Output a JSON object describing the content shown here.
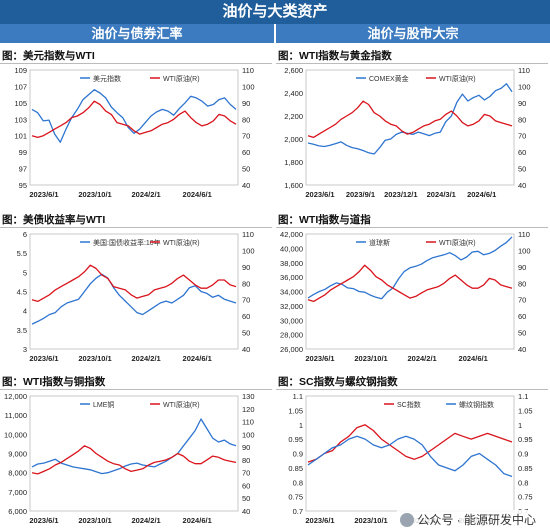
{
  "header": {
    "title": "油价与大类资产",
    "left_section": "油价与债券汇率",
    "right_section": "油价与股市大宗"
  },
  "watermark": "公众号 · 能源研发中心",
  "colors": {
    "header": "#1f5e9a",
    "subheader": "#3c7bc0",
    "blue": "#2e75d0",
    "red": "#d9141c"
  },
  "chart_data": [
    {
      "id": "usd-wti",
      "type": "line",
      "title": "图：美元指数与WTI",
      "x_ticks": [
        "2023/6/1",
        "2023/10/1",
        "2024/2/1",
        "2024/6/1"
      ],
      "y_left": {
        "min": 95,
        "max": 109,
        "step": 2,
        "ticks": [
          "109",
          "107",
          "105",
          "103",
          "101",
          "99",
          "97",
          "95"
        ]
      },
      "y_right": {
        "min": 40,
        "max": 110,
        "step": 10,
        "ticks": [
          "110",
          "100",
          "90",
          "80",
          "70",
          "60",
          "50",
          "40"
        ]
      },
      "legend_pos": "top-center",
      "series": [
        {
          "name": "美元指数",
          "axis": "left",
          "color": "blue",
          "values": [
            104.2,
            103.8,
            102.8,
            102.9,
            101.2,
            100.2,
            101.8,
            103.2,
            104.2,
            105.4,
            106.0,
            106.6,
            106.2,
            105.6,
            104.5,
            103.8,
            103.2,
            102.0,
            101.3,
            101.8,
            102.6,
            103.4,
            103.9,
            104.2,
            104.0,
            103.5,
            104.3,
            105.0,
            105.8,
            105.6,
            105.2,
            104.6,
            104.8,
            105.4,
            105.6,
            104.8,
            104.2
          ]
        },
        {
          "name": "WTI原油(R)",
          "axis": "right",
          "color": "red",
          "values": [
            70,
            69,
            70,
            72,
            74,
            76,
            78,
            81,
            82,
            84,
            87,
            91,
            89,
            85,
            83,
            78,
            77,
            76,
            73,
            71,
            72,
            73,
            75,
            77,
            78,
            80,
            83,
            85,
            81,
            78,
            76,
            77,
            79,
            83,
            82,
            79,
            77
          ]
        }
      ]
    },
    {
      "id": "wti-gold",
      "type": "line",
      "title": "图：WTI指数与黄金指数",
      "x_ticks": [
        "2023/6/1",
        "2023/9/1",
        "2023/12/1",
        "2024/3/1",
        "2024/6/1"
      ],
      "y_left": {
        "min": 1600,
        "max": 2600,
        "step": 200,
        "ticks": [
          "2,600",
          "2,400",
          "2,200",
          "2,000",
          "1,800",
          "1,600"
        ]
      },
      "y_right": {
        "min": 40,
        "max": 110,
        "step": 10,
        "ticks": [
          "110",
          "100",
          "90",
          "80",
          "70",
          "60",
          "50",
          "40"
        ]
      },
      "legend_pos": "top-center",
      "series": [
        {
          "name": "COMEX黄金",
          "axis": "left",
          "color": "blue",
          "values": [
            1965,
            1955,
            1940,
            1935,
            1945,
            1960,
            1975,
            1945,
            1925,
            1915,
            1900,
            1880,
            1870,
            1925,
            1990,
            2000,
            2040,
            2060,
            2050,
            2040,
            2060,
            2045,
            2030,
            2050,
            2060,
            2150,
            2200,
            2320,
            2390,
            2330,
            2360,
            2380,
            2340,
            2370,
            2420,
            2440,
            2480,
            2410
          ]
        },
        {
          "name": "WTI原油(R)",
          "axis": "right",
          "color": "red",
          "values": [
            70,
            69,
            71,
            73,
            75,
            77,
            80,
            82,
            84,
            87,
            91,
            89,
            84,
            82,
            79,
            77,
            76,
            73,
            71,
            72,
            74,
            76,
            77,
            79,
            80,
            83,
            85,
            82,
            78,
            76,
            77,
            79,
            83,
            82,
            79,
            78,
            77,
            76
          ]
        }
      ]
    },
    {
      "id": "yield-wti",
      "type": "line",
      "title": "图：美债收益率与WTI",
      "x_ticks": [
        "2023/6/1",
        "2023/10/1",
        "2024/2/1",
        "2024/6/1"
      ],
      "y_left": {
        "min": 3,
        "max": 6,
        "step": 0.5,
        "ticks": [
          "6",
          "5.5",
          "5",
          "4.5",
          "4",
          "3.5",
          "3"
        ]
      },
      "y_right": {
        "min": 40,
        "max": 110,
        "step": 10,
        "ticks": [
          "110",
          "100",
          "90",
          "80",
          "70",
          "60",
          "50",
          "40"
        ]
      },
      "legend_pos": "top-center",
      "series": [
        {
          "name": "美国:国债收益率:10年",
          "axis": "left",
          "color": "blue",
          "values": [
            3.65,
            3.72,
            3.8,
            3.9,
            3.95,
            4.1,
            4.2,
            4.25,
            4.3,
            4.5,
            4.7,
            4.85,
            4.95,
            4.85,
            4.6,
            4.4,
            4.25,
            4.1,
            3.95,
            3.9,
            4.0,
            4.1,
            4.2,
            4.25,
            4.2,
            4.3,
            4.4,
            4.6,
            4.65,
            4.5,
            4.45,
            4.35,
            4.4,
            4.3,
            4.25,
            4.2
          ]
        },
        {
          "name": "WTI原油(R)",
          "axis": "right",
          "color": "red",
          "values": [
            70,
            69,
            71,
            73,
            76,
            78,
            80,
            82,
            84,
            87,
            91,
            89,
            85,
            83,
            78,
            77,
            76,
            73,
            71,
            72,
            73,
            76,
            77,
            78,
            80,
            83,
            85,
            82,
            79,
            77,
            77,
            79,
            82,
            82,
            79,
            78
          ]
        }
      ]
    },
    {
      "id": "wti-dow",
      "type": "line",
      "title": "图：WTI指数与道指",
      "x_ticks": [
        "2023/6/1",
        "2023/10/1",
        "2024/2/1",
        "2024/6/1"
      ],
      "y_left": {
        "min": 26000,
        "max": 42000,
        "step": 2000,
        "ticks": [
          "42,000",
          "40,000",
          "38,000",
          "36,000",
          "34,000",
          "32,000",
          "30,000",
          "28,000",
          "26,000"
        ]
      },
      "y_right": {
        "min": 40,
        "max": 110,
        "step": 10,
        "ticks": [
          "110",
          "100",
          "90",
          "80",
          "70",
          "60",
          "50",
          "40"
        ]
      },
      "legend_pos": "top-center",
      "series": [
        {
          "name": "道琼斯",
          "axis": "left",
          "color": "blue",
          "values": [
            33100,
            33600,
            34000,
            34300,
            34800,
            35200,
            35000,
            34500,
            34400,
            34000,
            33900,
            33500,
            33200,
            33000,
            33900,
            34500,
            35800,
            36800,
            37300,
            37500,
            37800,
            38300,
            38700,
            38900,
            39100,
            39400,
            39000,
            38400,
            38800,
            39500,
            39600,
            39100,
            39300,
            39700,
            40300,
            40800,
            41600
          ]
        },
        {
          "name": "WTI原油(R)",
          "axis": "right",
          "color": "red",
          "values": [
            70,
            69,
            71,
            73,
            76,
            78,
            80,
            82,
            84,
            87,
            91,
            88,
            84,
            82,
            79,
            77,
            75,
            73,
            71,
            72,
            74,
            76,
            77,
            78,
            80,
            83,
            85,
            82,
            79,
            77,
            77,
            79,
            83,
            82,
            79,
            78,
            77
          ]
        }
      ]
    },
    {
      "id": "wti-copper",
      "type": "line",
      "title": "图：WTI指数与铜指数",
      "x_ticks": [
        "2023/6/1",
        "2023/10/1",
        "2024/2/1",
        "2024/6/1"
      ],
      "y_left": {
        "min": 6000,
        "max": 12000,
        "step": 1000,
        "ticks": [
          "12,000",
          "11,000",
          "10,000",
          "9,000",
          "8,000",
          "7,000",
          "6,000"
        ]
      },
      "y_right": {
        "min": 40,
        "max": 130,
        "step": 10,
        "ticks": [
          "130",
          "120",
          "110",
          "100",
          "90",
          "80",
          "70",
          "60",
          "50",
          "40"
        ]
      },
      "legend_pos": "top-center",
      "series": [
        {
          "name": "LME铜",
          "axis": "left",
          "color": "blue",
          "values": [
            8300,
            8450,
            8500,
            8600,
            8700,
            8500,
            8400,
            8300,
            8250,
            8200,
            8150,
            8050,
            7950,
            8000,
            8100,
            8200,
            8350,
            8450,
            8500,
            8400,
            8350,
            8300,
            8450,
            8600,
            8800,
            9000,
            9400,
            9800,
            10200,
            10800,
            10300,
            9800,
            9600,
            9700,
            9500,
            9400
          ]
        },
        {
          "name": "WTI原油(R)",
          "axis": "right",
          "color": "red",
          "values": [
            70,
            69,
            71,
            73,
            76,
            78,
            81,
            84,
            87,
            91,
            89,
            85,
            82,
            79,
            77,
            76,
            73,
            71,
            72,
            73,
            76,
            78,
            79,
            80,
            82,
            85,
            83,
            79,
            77,
            77,
            80,
            83,
            82,
            80,
            79,
            78
          ]
        }
      ]
    },
    {
      "id": "sc-rebar",
      "type": "line",
      "title": "图：SC指数与螺纹钢指数",
      "x_ticks": [
        "2023/6/1",
        "2023/10/1",
        "2024/2/1",
        "2024/6/1"
      ],
      "y_left": {
        "min": 0.7,
        "max": 1.1,
        "step": 0.05,
        "ticks": [
          "1.1",
          "1.05",
          "1",
          "0.95",
          "0.9",
          "0.85",
          "0.8",
          "0.75",
          "0.7"
        ]
      },
      "y_right": {
        "min": 0.7,
        "max": 1.1,
        "step": 0.05,
        "ticks": [
          "1.1",
          "1.05",
          "1",
          "0.95",
          "0.9",
          "0.85",
          "0.8",
          "0.75",
          "0.7"
        ]
      },
      "legend_pos": "top-left",
      "series": [
        {
          "name": "SC指数",
          "axis": "left",
          "color": "red",
          "values": [
            0.87,
            0.88,
            0.9,
            0.91,
            0.94,
            0.96,
            0.99,
            1.0,
            0.98,
            0.95,
            0.93,
            0.91,
            0.89,
            0.88,
            0.89,
            0.91,
            0.93,
            0.95,
            0.97,
            0.96,
            0.95,
            0.96,
            0.97,
            0.96,
            0.95,
            0.94
          ]
        },
        {
          "name": "螺纹钢指数",
          "axis": "left",
          "color": "blue",
          "values": [
            0.86,
            0.88,
            0.9,
            0.92,
            0.93,
            0.95,
            0.96,
            0.95,
            0.93,
            0.92,
            0.93,
            0.95,
            0.96,
            0.95,
            0.93,
            0.89,
            0.86,
            0.85,
            0.84,
            0.86,
            0.89,
            0.9,
            0.88,
            0.86,
            0.83,
            0.82
          ]
        }
      ]
    }
  ]
}
